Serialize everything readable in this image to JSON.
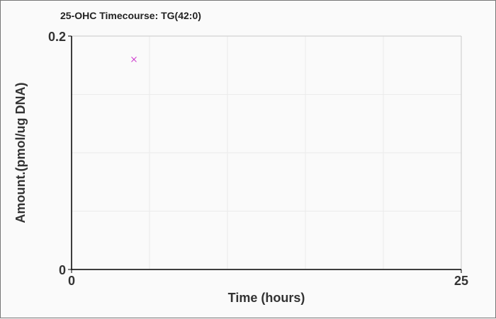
{
  "chart_data": {
    "type": "scatter",
    "title": "25-OHC Timecourse: TG(42:0)",
    "xlabel": "Time (hours)",
    "ylabel": "Amount.(pmol/ug DNA)",
    "xlim": [
      0,
      25
    ],
    "ylim": [
      0,
      0.2
    ],
    "x_tick_labels": [
      "0",
      "25"
    ],
    "y_tick_labels": [
      "0",
      "0.2"
    ],
    "x_grid": [
      5,
      10,
      15,
      20
    ],
    "y_grid": [
      0.05,
      0.1,
      0.15
    ],
    "grid": true,
    "marker": "x",
    "marker_color": "#cc33cc",
    "points": [
      {
        "x": 4,
        "y": 0.18
      }
    ]
  }
}
